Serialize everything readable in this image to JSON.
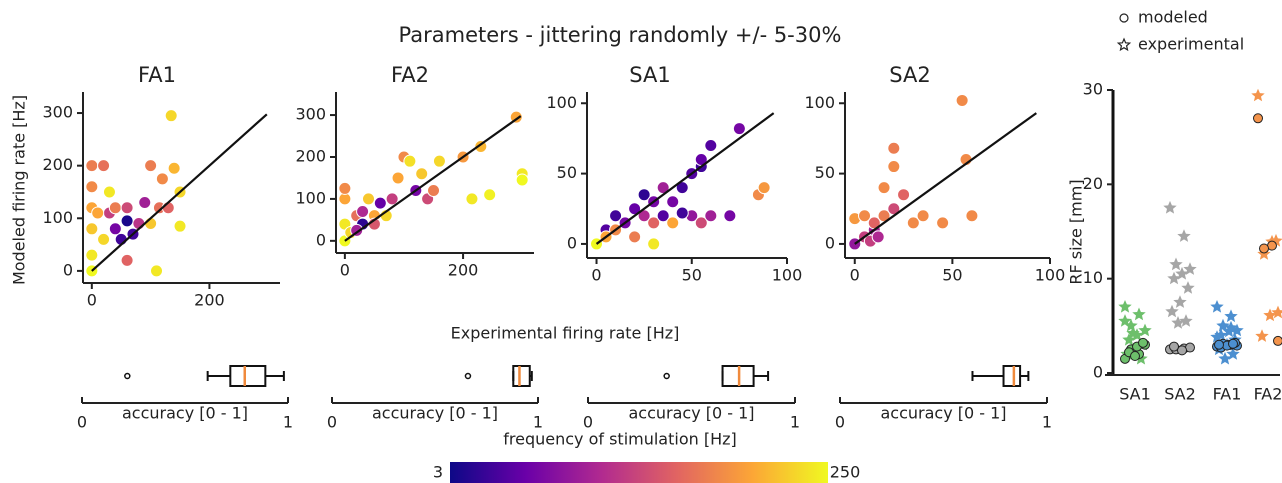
{
  "title": "Parameters -  jittering randomly  +/- 5-30%",
  "shared_xlabel": "Experimental firing rate [Hz]",
  "colorbar": {
    "label": "frequency of stimulation [Hz]",
    "lim": [
      3,
      250
    ],
    "ticks": [
      3,
      250
    ],
    "colormap": [
      "#0d0887",
      "#6a00a8",
      "#b12a90",
      "#e16462",
      "#fca636",
      "#f0f921"
    ]
  },
  "chart_data": [
    {
      "type": "scatter",
      "title": "FA1",
      "ylabel": "Modeled firing rate [Hz]",
      "xlim": [
        -15,
        320
      ],
      "ylim": [
        -23,
        340
      ],
      "xticks": [
        0,
        200
      ],
      "yticks": [
        0,
        100,
        200,
        300
      ],
      "x": [
        0,
        0,
        0,
        0,
        0,
        0,
        20,
        30,
        30,
        40,
        40,
        50,
        60,
        60,
        60,
        70,
        80,
        90,
        100,
        100,
        110,
        115,
        120,
        130,
        135,
        140,
        150,
        150,
        20,
        10
      ],
      "y": [
        0,
        30,
        80,
        120,
        160,
        200,
        200,
        150,
        110,
        80,
        120,
        60,
        95,
        20,
        120,
        70,
        90,
        130,
        90,
        200,
        0,
        120,
        175,
        120,
        295,
        195,
        150,
        85,
        60,
        110
      ],
      "c": [
        250,
        240,
        220,
        200,
        180,
        170,
        160,
        240,
        120,
        60,
        170,
        30,
        10,
        150,
        130,
        30,
        110,
        90,
        220,
        170,
        240,
        160,
        180,
        150,
        230,
        210,
        230,
        240,
        230,
        200
      ]
    },
    {
      "type": "scatter",
      "title": "FA2",
      "xlim": [
        -15,
        320
      ],
      "ylim": [
        -29,
        355
      ],
      "xticks": [
        0,
        200
      ],
      "yticks": [
        0,
        100,
        200,
        300
      ],
      "x": [
        0,
        0,
        0,
        0,
        10,
        20,
        30,
        30,
        40,
        50,
        60,
        70,
        80,
        90,
        100,
        110,
        120,
        130,
        140,
        150,
        160,
        200,
        215,
        230,
        245,
        290,
        300,
        300,
        20,
        50
      ],
      "y": [
        0,
        40,
        100,
        125,
        20,
        60,
        70,
        40,
        100,
        60,
        90,
        60,
        100,
        150,
        200,
        190,
        120,
        160,
        100,
        120,
        190,
        200,
        100,
        225,
        110,
        295,
        160,
        145,
        25,
        40
      ],
      "c": [
        250,
        240,
        200,
        180,
        230,
        160,
        100,
        20,
        220,
        200,
        50,
        230,
        120,
        200,
        180,
        235,
        60,
        220,
        130,
        170,
        230,
        190,
        240,
        210,
        245,
        200,
        240,
        250,
        90,
        140
      ]
    },
    {
      "type": "scatter",
      "title": "SA1",
      "xlim": [
        -5,
        100
      ],
      "ylim": [
        -10,
        108
      ],
      "xticks": [
        0,
        50,
        100
      ],
      "yticks": [
        0,
        50,
        100
      ],
      "x": [
        0,
        5,
        5,
        10,
        10,
        15,
        20,
        20,
        25,
        25,
        30,
        30,
        30,
        35,
        35,
        40,
        40,
        45,
        50,
        50,
        55,
        55,
        55,
        60,
        60,
        70,
        75,
        85,
        88,
        45
      ],
      "y": [
        0,
        10,
        5,
        20,
        10,
        15,
        25,
        5,
        35,
        20,
        0,
        15,
        30,
        40,
        20,
        15,
        30,
        40,
        50,
        20,
        55,
        60,
        15,
        20,
        70,
        20,
        82,
        35,
        40,
        22
      ],
      "c": [
        250,
        40,
        200,
        30,
        180,
        60,
        50,
        170,
        20,
        100,
        240,
        150,
        60,
        90,
        40,
        200,
        60,
        30,
        40,
        80,
        30,
        50,
        130,
        90,
        40,
        60,
        60,
        180,
        190,
        30
      ]
    },
    {
      "type": "scatter",
      "title": "SA2",
      "xlim": [
        -5,
        100
      ],
      "ylim": [
        -10,
        108
      ],
      "xticks": [
        0,
        50,
        100
      ],
      "yticks": [
        0,
        50,
        100
      ],
      "x": [
        0,
        0,
        5,
        5,
        10,
        10,
        15,
        15,
        20,
        20,
        20,
        25,
        30,
        35,
        45,
        55,
        57,
        60,
        8,
        12
      ],
      "y": [
        0,
        18,
        5,
        20,
        10,
        15,
        20,
        40,
        25,
        68,
        55,
        35,
        15,
        20,
        15,
        102,
        60,
        20,
        2,
        5
      ],
      "c": [
        80,
        190,
        120,
        180,
        90,
        150,
        170,
        180,
        130,
        170,
        180,
        150,
        180,
        180,
        180,
        180,
        180,
        180,
        120,
        100
      ]
    },
    {
      "type": "box",
      "xlabel": "accuracy [0 - 1]",
      "xlim": [
        0,
        1
      ],
      "xticks": [
        0,
        1
      ],
      "whislo": 0.61,
      "q1": 0.72,
      "med": 0.79,
      "q3": 0.89,
      "whishi": 0.98,
      "fliers": [
        0.22
      ]
    },
    {
      "type": "box",
      "xlabel": "accuracy [0 - 1]",
      "xlim": [
        0,
        1
      ],
      "xticks": [
        0,
        1
      ],
      "whislo": 0.88,
      "q1": 0.88,
      "med": 0.91,
      "q3": 0.96,
      "whishi": 0.97,
      "fliers": [
        0.66
      ]
    },
    {
      "type": "box",
      "xlabel": "accuracy [0 - 1]",
      "xlim": [
        0,
        1
      ],
      "xticks": [
        0,
        1
      ],
      "whislo": 0.65,
      "q1": 0.65,
      "med": 0.73,
      "q3": 0.8,
      "whishi": 0.87,
      "fliers": [
        0.38
      ]
    },
    {
      "type": "box",
      "xlabel": "accuracy [0 - 1]",
      "xlim": [
        0,
        1
      ],
      "xticks": [
        0,
        1
      ],
      "whislo": 0.64,
      "q1": 0.79,
      "med": 0.84,
      "q3": 0.87,
      "whishi": 0.91,
      "fliers": []
    },
    {
      "type": "strip",
      "ylabel": "RF size [mm]",
      "ylim": [
        0,
        30
      ],
      "yticks": [
        0,
        10,
        20,
        30
      ],
      "categories": [
        "SA1",
        "SA2",
        "FA1",
        "FA2"
      ],
      "colors": [
        "#6dbf6b",
        "#a6a6a6",
        "#4c8fd0",
        "#f4944c"
      ],
      "series": [
        {
          "name": "modeled",
          "marker": "circle",
          "values": [
            [
              1.5,
              2,
              2.5,
              3,
              2.8,
              2.2,
              3.2,
              1.8
            ],
            [
              2.5,
              2.6,
              2.5,
              2.7,
              2.4,
              2.8
            ],
            [
              2.8,
              3,
              3.1,
              2.9,
              3,
              2.7,
              3.2,
              2.9,
              3,
              3.1
            ],
            [
              27,
              13.5,
              13.2,
              3.4
            ]
          ]
        },
        {
          "name": "experimental",
          "marker": "star",
          "values": [
            [
              7,
              6.2,
              5,
              4.5,
              4,
              3.5,
              3,
              2.5,
              2,
              1.5,
              4.2,
              5.5
            ],
            [
              17.5,
              14.5,
              11.5,
              11,
              10.5,
              10,
              9,
              7.5,
              6.5,
              5.5,
              5.3
            ],
            [
              7,
              6,
              5,
              4.5,
              4.4,
              4,
              3.5,
              3,
              2.5,
              2,
              1.5,
              3.8,
              4.8
            ],
            [
              29.4,
              13.9,
              12.6,
              6.4,
              6.1,
              3.9,
              14
            ]
          ]
        }
      ]
    }
  ]
}
